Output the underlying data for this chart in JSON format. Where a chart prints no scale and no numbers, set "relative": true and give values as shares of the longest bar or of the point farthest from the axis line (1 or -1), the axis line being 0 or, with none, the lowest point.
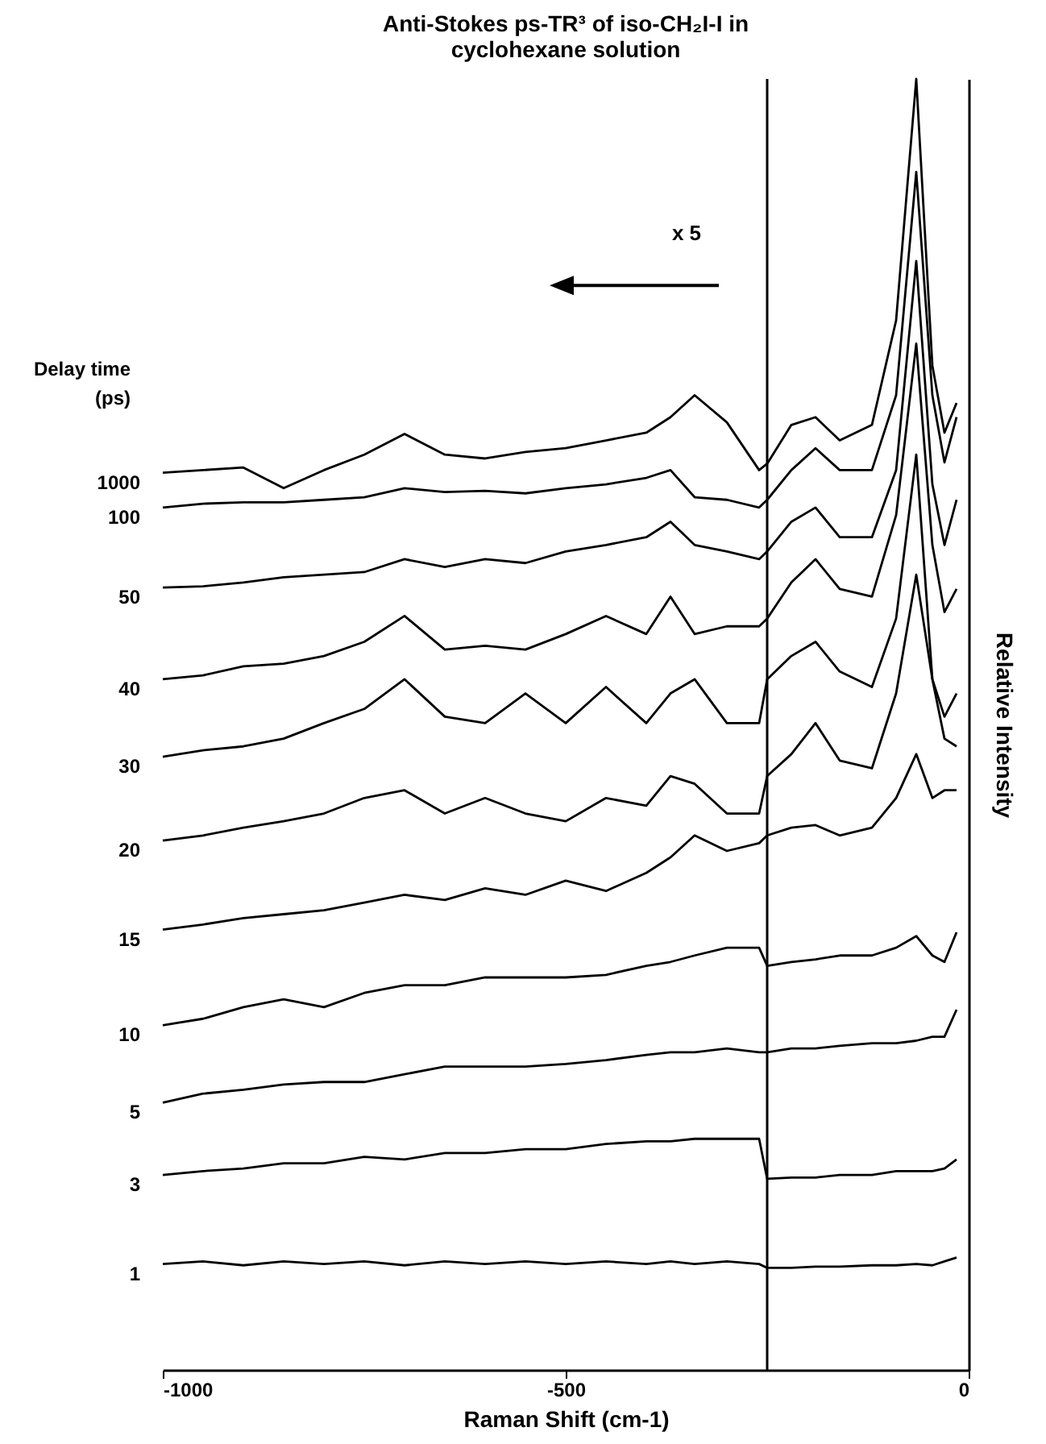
{
  "chart_data": {
    "type": "line",
    "title": "Anti-Stokes ps-TR³ of iso-CH₂I-I in cyclohexane solution",
    "xlabel": "Raman Shift (cm-1)",
    "ylabel": "Relative Intensity",
    "legend_title": "Delay time (ps)",
    "relative": true,
    "annotations": [
      "x 5"
    ],
    "xlim": [
      -1000,
      0
    ],
    "xticks": [
      -1000,
      -500,
      0
    ],
    "x": [
      -1000,
      -950,
      -900,
      -850,
      -800,
      -750,
      -700,
      -650,
      -600,
      -550,
      -500,
      -450,
      -400,
      -370,
      -340,
      -300,
      -260,
      -250,
      -220,
      -190,
      -160,
      -120,
      -90,
      -65,
      -45,
      -30,
      -15
    ],
    "ref_lines": [
      {
        "axis": "x",
        "value": -250,
        "color": "#000000"
      }
    ],
    "series": [
      {
        "name": "1000",
        "color": "#000000",
        "values": [
          0.695,
          0.697,
          0.699,
          0.683,
          0.697,
          0.709,
          0.725,
          0.709,
          0.706,
          0.711,
          0.714,
          0.72,
          0.726,
          0.738,
          0.755,
          0.734,
          0.697,
          0.702,
          0.732,
          0.738,
          0.72,
          0.732,
          0.813,
          1,
          0.778,
          0.726,
          0.749
        ]
      },
      {
        "name": "100",
        "color": "#000000",
        "values": [
          0.668,
          0.671,
          0.672,
          0.672,
          0.674,
          0.676,
          0.683,
          0.68,
          0.681,
          0.679,
          0.683,
          0.686,
          0.691,
          0.697,
          0.676,
          0.674,
          0.668,
          0.674,
          0.697,
          0.714,
          0.697,
          0.697,
          0.755,
          0.928,
          0.755,
          0.703,
          0.738
        ]
      },
      {
        "name": "50",
        "color": "#000000",
        "values": [
          0.606,
          0.607,
          0.61,
          0.614,
          0.616,
          0.618,
          0.628,
          0.622,
          0.628,
          0.625,
          0.634,
          0.639,
          0.645,
          0.657,
          0.639,
          0.634,
          0.628,
          0.634,
          0.657,
          0.668,
          0.645,
          0.645,
          0.697,
          0.859,
          0.686,
          0.639,
          0.674
        ]
      },
      {
        "name": "40",
        "color": "#000000",
        "values": [
          0.535,
          0.538,
          0.545,
          0.547,
          0.553,
          0.564,
          0.584,
          0.558,
          0.561,
          0.558,
          0.57,
          0.584,
          0.57,
          0.599,
          0.57,
          0.576,
          0.576,
          0.582,
          0.61,
          0.628,
          0.605,
          0.599,
          0.662,
          0.795,
          0.639,
          0.587,
          0.605
        ]
      },
      {
        "name": "30",
        "color": "#000000",
        "values": [
          0.475,
          0.48,
          0.483,
          0.489,
          0.501,
          0.512,
          0.535,
          0.506,
          0.501,
          0.524,
          0.501,
          0.529,
          0.501,
          0.524,
          0.535,
          0.501,
          0.501,
          0.535,
          0.553,
          0.564,
          0.541,
          0.529,
          0.582,
          0.709,
          0.535,
          0.506,
          0.524
        ]
      },
      {
        "name": "20",
        "color": "#000000",
        "values": [
          0.41,
          0.414,
          0.42,
          0.425,
          0.431,
          0.443,
          0.449,
          0.431,
          0.443,
          0.431,
          0.425,
          0.443,
          0.437,
          0.46,
          0.454,
          0.431,
          0.431,
          0.46,
          0.477,
          0.501,
          0.472,
          0.466,
          0.524,
          0.616,
          0.535,
          0.489,
          0.483
        ]
      },
      {
        "name": "15",
        "color": "#000000",
        "values": [
          0.341,
          0.345,
          0.35,
          0.353,
          0.356,
          0.362,
          0.368,
          0.364,
          0.373,
          0.368,
          0.379,
          0.371,
          0.385,
          0.397,
          0.414,
          0.402,
          0.408,
          0.414,
          0.42,
          0.422,
          0.414,
          0.42,
          0.443,
          0.477,
          0.443,
          0.449,
          0.449
        ]
      },
      {
        "name": "10",
        "color": "#000000",
        "values": [
          0.267,
          0.272,
          0.281,
          0.287,
          0.281,
          0.292,
          0.298,
          0.298,
          0.304,
          0.304,
          0.304,
          0.306,
          0.313,
          0.316,
          0.321,
          0.327,
          0.327,
          0.313,
          0.316,
          0.318,
          0.321,
          0.321,
          0.327,
          0.336,
          0.321,
          0.316,
          0.339
        ]
      },
      {
        "name": "5",
        "color": "#000000",
        "values": [
          0.207,
          0.214,
          0.217,
          0.221,
          0.223,
          0.223,
          0.229,
          0.235,
          0.235,
          0.235,
          0.237,
          0.24,
          0.244,
          0.246,
          0.246,
          0.249,
          0.246,
          0.246,
          0.249,
          0.249,
          0.251,
          0.253,
          0.253,
          0.255,
          0.258,
          0.258,
          0.279
        ]
      },
      {
        "name": "3",
        "color": "#000000",
        "values": [
          0.151,
          0.154,
          0.156,
          0.16,
          0.16,
          0.165,
          0.163,
          0.168,
          0.168,
          0.171,
          0.171,
          0.175,
          0.177,
          0.177,
          0.179,
          0.179,
          0.179,
          0.148,
          0.149,
          0.149,
          0.151,
          0.151,
          0.154,
          0.154,
          0.154,
          0.156,
          0.163
        ]
      },
      {
        "name": "1",
        "color": "#000000",
        "values": [
          0.082,
          0.084,
          0.081,
          0.084,
          0.082,
          0.084,
          0.081,
          0.084,
          0.082,
          0.084,
          0.082,
          0.084,
          0.082,
          0.084,
          0.082,
          0.084,
          0.082,
          0.079,
          0.079,
          0.08,
          0.08,
          0.081,
          0.081,
          0.082,
          0.081,
          0.084,
          0.087
        ]
      }
    ]
  }
}
